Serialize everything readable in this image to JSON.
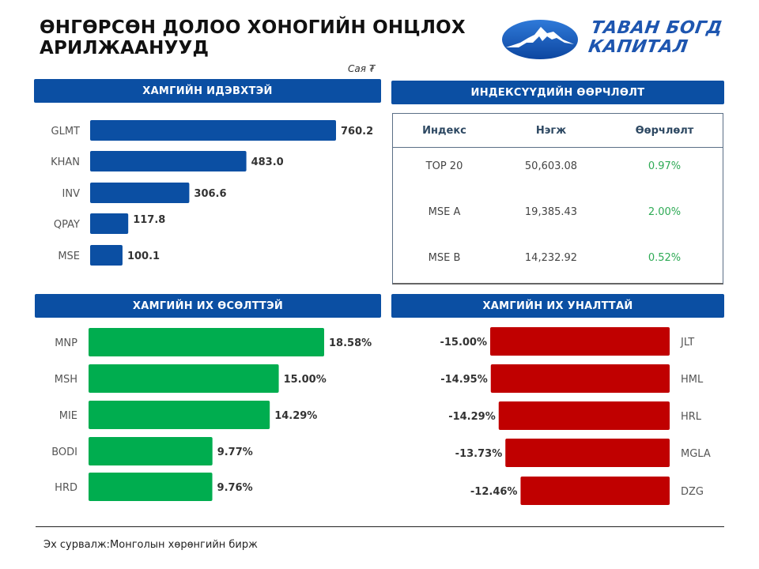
{
  "header": {
    "title_line1": "ӨНГӨРСӨН ДОЛОО ХОНОГИЙН ОНЦЛОХ",
    "title_line2": "АРИЛЖААНУУД",
    "logo_line1": "ТАВАН БОГД",
    "logo_line2": "КАПИТАЛ",
    "unit": "Сая ₮"
  },
  "colors": {
    "header_bg": "#0b4fa3",
    "active_bar": "#0b4fa3",
    "gainer_bar": "#00ad4f",
    "loser_bar": "#c00000",
    "positive_text": "#2eaa55"
  },
  "index_table": {
    "title": "ИНДЕКСҮҮДИЙН ӨӨРЧЛӨЛТ",
    "columns": [
      "Индекс",
      "Нэгж",
      "Өөрчлөлт"
    ],
    "rows": [
      [
        "TOP 20",
        "50,603.08",
        "0.97%"
      ],
      [
        "MSE A",
        "19,385.43",
        "2.00%"
      ],
      [
        "MSE B",
        "14,232.92",
        "0.52%"
      ]
    ]
  },
  "chart_data": [
    {
      "type": "bar",
      "orientation": "horizontal",
      "title": "ХАМГИЙН ИДЭВХТЭЙ",
      "categories": [
        "GLMT",
        "KHAN",
        "INV",
        "QPAY",
        "MSE"
      ],
      "values": [
        760.2,
        483.0,
        306.6,
        117.8,
        100.1
      ],
      "labels": [
        "760.2",
        "483.0",
        "306.6",
        "117.8",
        "100.1"
      ],
      "unit": "Сая ₮"
    },
    {
      "type": "bar",
      "orientation": "horizontal",
      "title": "ХАМГИЙН ИХ ӨСӨЛТТЭЙ",
      "categories": [
        "MNP",
        "MSH",
        "MIE",
        "BODI",
        "HRD"
      ],
      "values": [
        18.58,
        15.0,
        14.29,
        9.77,
        9.76
      ],
      "labels": [
        "18.58%",
        "15.00%",
        "14.29%",
        "9.77%",
        "9.76%"
      ]
    },
    {
      "type": "bar",
      "orientation": "horizontal",
      "title": "ХАМГИЙН ИХ УНАЛТТАЙ",
      "categories": [
        "JLT",
        "HML",
        "HRL",
        "MGLA",
        "DZG"
      ],
      "values": [
        -15.0,
        -14.95,
        -14.29,
        -13.73,
        -12.46
      ],
      "labels": [
        "-15.00%",
        "-14.95%",
        "-14.29%",
        "-13.73%",
        "-12.46%"
      ]
    }
  ],
  "footer": {
    "source": "Эх сурвалж:Монголын хөрөнгийн бирж"
  }
}
